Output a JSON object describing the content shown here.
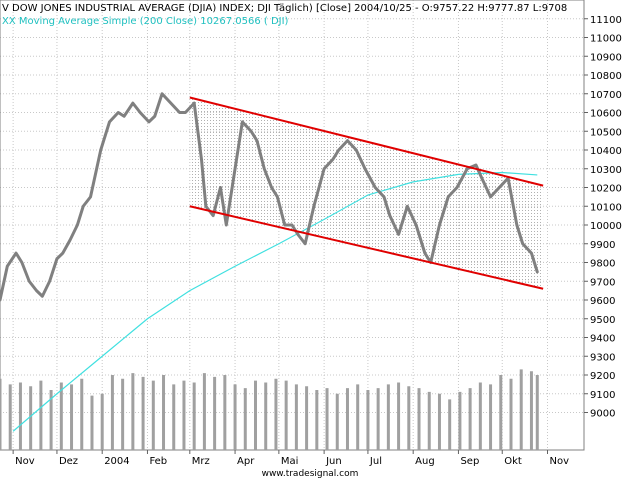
{
  "chart_data": {
    "type": "line",
    "title": "Ⅴ DOW JONES INDUSTRIAL AVERAGE (DJIA) INDEX; DJI  Täglich) [Close] 2004/10/25 - O:9757.22 H:9777.87 L:9708",
    "subtitle": "XX Moving Average Simple (200 Close) 10267.0566 ( DJI)",
    "footer": "www.tradesignal.com",
    "ylim": [
      8800,
      11200
    ],
    "yticks": [
      9000,
      9100,
      9200,
      9300,
      9400,
      9500,
      9600,
      9700,
      9800,
      9900,
      10000,
      10100,
      10200,
      10300,
      10400,
      10500,
      10600,
      10700,
      10800,
      10900,
      11000,
      11100
    ],
    "xlim": [
      "2003-10-23",
      "2004-11-26"
    ],
    "xticks": [
      {
        "date": "2003-11-01",
        "label": "Nov"
      },
      {
        "date": "2003-12-01",
        "label": "Dez"
      },
      {
        "date": "2004-01-01",
        "label": "2004"
      },
      {
        "date": "2004-02-01",
        "label": "Feb"
      },
      {
        "date": "2004-03-01",
        "label": "Mrz"
      },
      {
        "date": "2004-04-01",
        "label": "Apr"
      },
      {
        "date": "2004-05-01",
        "label": "Mai"
      },
      {
        "date": "2004-06-01",
        "label": "Jun"
      },
      {
        "date": "2004-07-01",
        "label": "Jul"
      },
      {
        "date": "2004-08-01",
        "label": "Aug"
      },
      {
        "date": "2004-09-01",
        "label": "Sep"
      },
      {
        "date": "2004-10-01",
        "label": "Okt"
      },
      {
        "date": "2004-11-01",
        "label": "Nov"
      }
    ],
    "grid": true,
    "colors": {
      "price": "#808080",
      "ma": "#40e0e0",
      "channel": "#e00000",
      "volume": "#a0a0a0",
      "subtitle": "#20c0c0",
      "grid": "#c8c8c8"
    },
    "series": [
      {
        "name": "DOW JONES INDUSTRIAL AVERAGE (DJIA) INDEX",
        "x": [
          "2003-10-23",
          "2003-10-28",
          "2003-11-03",
          "2003-11-07",
          "2003-11-12",
          "2003-11-17",
          "2003-11-21",
          "2003-11-26",
          "2003-12-01",
          "2003-12-05",
          "2003-12-10",
          "2003-12-15",
          "2003-12-19",
          "2003-12-24",
          "2003-12-31",
          "2004-01-06",
          "2004-01-12",
          "2004-01-16",
          "2004-01-22",
          "2004-01-27",
          "2004-02-02",
          "2004-02-06",
          "2004-02-11",
          "2004-02-17",
          "2004-02-23",
          "2004-02-27",
          "2004-03-04",
          "2004-03-09",
          "2004-03-12",
          "2004-03-17",
          "2004-03-22",
          "2004-03-26",
          "2004-04-01",
          "2004-04-06",
          "2004-04-12",
          "2004-04-16",
          "2004-04-21",
          "2004-04-26",
          "2004-04-30",
          "2004-05-05",
          "2004-05-10",
          "2004-05-14",
          "2004-05-19",
          "2004-05-25",
          "2004-06-01",
          "2004-06-07",
          "2004-06-11",
          "2004-06-17",
          "2004-06-23",
          "2004-06-29",
          "2004-07-06",
          "2004-07-12",
          "2004-07-16",
          "2004-07-22",
          "2004-07-28",
          "2004-08-03",
          "2004-08-09",
          "2004-08-13",
          "2004-08-19",
          "2004-08-25",
          "2004-08-31",
          "2004-09-07",
          "2004-09-13",
          "2004-09-17",
          "2004-09-23",
          "2004-09-29",
          "2004-10-05",
          "2004-10-11",
          "2004-10-15",
          "2004-10-21",
          "2004-10-25"
        ],
        "y": [
          9600,
          9780,
          9850,
          9800,
          9700,
          9650,
          9620,
          9700,
          9820,
          9850,
          9920,
          10000,
          10100,
          10150,
          10400,
          10550,
          10600,
          10580,
          10650,
          10600,
          10550,
          10580,
          10700,
          10650,
          10600,
          10600,
          10650,
          10350,
          10100,
          10050,
          10200,
          10000,
          10300,
          10550,
          10500,
          10450,
          10300,
          10200,
          10150,
          10000,
          10000,
          9950,
          9900,
          10100,
          10300,
          10350,
          10400,
          10450,
          10400,
          10300,
          10200,
          10150,
          10050,
          9950,
          10100,
          10000,
          9850,
          9800,
          10000,
          10150,
          10200,
          10300,
          10320,
          10250,
          10150,
          10200,
          10250,
          10000,
          9900,
          9850,
          9750
        ]
      },
      {
        "name": "Moving Average Simple (200 Close)",
        "x": [
          "2003-11-01",
          "2003-12-01",
          "2004-01-01",
          "2004-02-01",
          "2004-03-01",
          "2004-04-01",
          "2004-05-01",
          "2004-06-01",
          "2004-07-01",
          "2004-08-01",
          "2004-09-01",
          "2004-10-01",
          "2004-10-25"
        ],
        "y": [
          8900,
          9100,
          9300,
          9500,
          9650,
          9780,
          9900,
          10030,
          10160,
          10230,
          10270,
          10280,
          10267
        ]
      }
    ],
    "channel": {
      "upper": {
        "x": [
          "2004-03-01",
          "2004-10-29"
        ],
        "y": [
          10680,
          10210
        ]
      },
      "lower": {
        "x": [
          "2004-03-01",
          "2004-10-29"
        ],
        "y": [
          10100,
          9660
        ]
      }
    },
    "volume_scale_max": 9300,
    "volume": [
      {
        "x": "2003-10-23",
        "v": 9180
      },
      {
        "x": "2003-10-30",
        "v": 9150
      },
      {
        "x": "2003-11-06",
        "v": 9160
      },
      {
        "x": "2003-11-13",
        "v": 9140
      },
      {
        "x": "2003-11-20",
        "v": 9170
      },
      {
        "x": "2003-11-27",
        "v": 9120
      },
      {
        "x": "2003-12-04",
        "v": 9160
      },
      {
        "x": "2003-12-11",
        "v": 9150
      },
      {
        "x": "2003-12-18",
        "v": 9180
      },
      {
        "x": "2003-12-25",
        "v": 9090
      },
      {
        "x": "2004-01-01",
        "v": 9100
      },
      {
        "x": "2004-01-08",
        "v": 9200
      },
      {
        "x": "2004-01-15",
        "v": 9180
      },
      {
        "x": "2004-01-22",
        "v": 9210
      },
      {
        "x": "2004-01-29",
        "v": 9190
      },
      {
        "x": "2004-02-05",
        "v": 9170
      },
      {
        "x": "2004-02-12",
        "v": 9200
      },
      {
        "x": "2004-02-19",
        "v": 9150
      },
      {
        "x": "2004-02-26",
        "v": 9170
      },
      {
        "x": "2004-03-04",
        "v": 9160
      },
      {
        "x": "2004-03-11",
        "v": 9210
      },
      {
        "x": "2004-03-18",
        "v": 9190
      },
      {
        "x": "2004-03-25",
        "v": 9200
      },
      {
        "x": "2004-04-01",
        "v": 9150
      },
      {
        "x": "2004-04-08",
        "v": 9130
      },
      {
        "x": "2004-04-15",
        "v": 9170
      },
      {
        "x": "2004-04-22",
        "v": 9160
      },
      {
        "x": "2004-04-29",
        "v": 9180
      },
      {
        "x": "2004-05-06",
        "v": 9170
      },
      {
        "x": "2004-05-13",
        "v": 9150
      },
      {
        "x": "2004-05-20",
        "v": 9140
      },
      {
        "x": "2004-05-27",
        "v": 9120
      },
      {
        "x": "2004-06-03",
        "v": 9130
      },
      {
        "x": "2004-06-10",
        "v": 9100
      },
      {
        "x": "2004-06-17",
        "v": 9130
      },
      {
        "x": "2004-06-24",
        "v": 9150
      },
      {
        "x": "2004-07-01",
        "v": 9120
      },
      {
        "x": "2004-07-08",
        "v": 9130
      },
      {
        "x": "2004-07-15",
        "v": 9150
      },
      {
        "x": "2004-07-22",
        "v": 9160
      },
      {
        "x": "2004-07-29",
        "v": 9140
      },
      {
        "x": "2004-08-05",
        "v": 9130
      },
      {
        "x": "2004-08-12",
        "v": 9110
      },
      {
        "x": "2004-08-19",
        "v": 9100
      },
      {
        "x": "2004-08-26",
        "v": 9070
      },
      {
        "x": "2004-09-02",
        "v": 9110
      },
      {
        "x": "2004-09-09",
        "v": 9130
      },
      {
        "x": "2004-09-16",
        "v": 9160
      },
      {
        "x": "2004-09-23",
        "v": 9150
      },
      {
        "x": "2004-09-30",
        "v": 9200
      },
      {
        "x": "2004-10-07",
        "v": 9180
      },
      {
        "x": "2004-10-14",
        "v": 9230
      },
      {
        "x": "2004-10-21",
        "v": 9220
      },
      {
        "x": "2004-10-25",
        "v": 9200
      }
    ]
  }
}
